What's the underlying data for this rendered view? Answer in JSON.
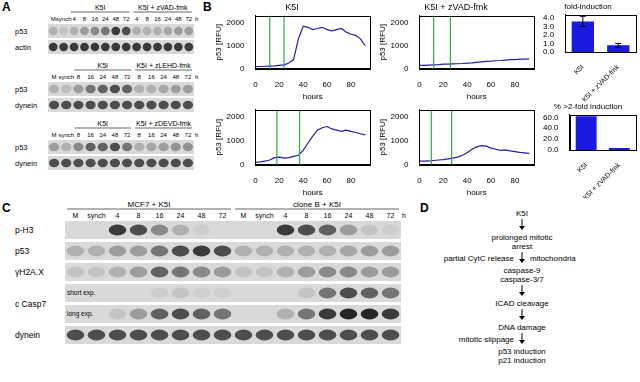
{
  "panel_labels": [
    "A",
    "B",
    "C",
    "D"
  ],
  "chart_data": [
    {
      "type": "line",
      "title": "K5I",
      "xlabel": "hours",
      "ylabel": "p53 [RFU]",
      "x": [
        0,
        4,
        8,
        12,
        16,
        20,
        24,
        28,
        32,
        36,
        40,
        44,
        48,
        52,
        56,
        60,
        64,
        68,
        72,
        76,
        80,
        84,
        88,
        92
      ],
      "values": [
        100,
        100,
        110,
        120,
        130,
        150,
        170,
        250,
        400,
        1300,
        1850,
        1800,
        1700,
        1750,
        1800,
        1700,
        1650,
        1700,
        1750,
        1600,
        1500,
        1450,
        1300,
        1000
      ],
      "color": "#2020a0",
      "xlim": [
        0,
        96
      ],
      "xticks": [
        0,
        20,
        40,
        60,
        80
      ],
      "ylim": [
        0,
        2300
      ],
      "yticks": [
        0,
        1000,
        2000
      ],
      "grid": false,
      "vertical_lines": {
        "x": [
          12,
          24
        ],
        "color": "#33aa44"
      }
    },
    {
      "type": "line",
      "title": "K5I + zVAD-fmk",
      "xlabel": "hours",
      "ylabel": "p53 [RFU]",
      "x": [
        0,
        4,
        8,
        12,
        16,
        20,
        24,
        28,
        32,
        36,
        40,
        44,
        48,
        52,
        56,
        60,
        64,
        68,
        72,
        76,
        80,
        84,
        88,
        92
      ],
      "values": [
        150,
        150,
        160,
        170,
        180,
        200,
        200,
        210,
        220,
        230,
        250,
        260,
        280,
        300,
        320,
        330,
        350,
        360,
        380,
        400,
        400,
        420,
        420,
        430
      ],
      "color": "#2020a0",
      "xlim": [
        0,
        96
      ],
      "xticks": [
        0,
        20,
        40,
        60,
        80
      ],
      "ylim": [
        0,
        2300
      ],
      "yticks": [
        0,
        1000,
        2000
      ],
      "grid": false,
      "vertical_lines": {
        "x": [
          12,
          26
        ],
        "color": "#33aa44"
      }
    },
    {
      "type": "line",
      "xlabel": "hours",
      "ylabel": "p53 [RFU]",
      "x": [
        0,
        4,
        8,
        12,
        16,
        20,
        24,
        28,
        32,
        36,
        40,
        44,
        48,
        52,
        56,
        60,
        64,
        68,
        72,
        76,
        80,
        84,
        88,
        92
      ],
      "values": [
        100,
        120,
        150,
        200,
        300,
        320,
        280,
        300,
        350,
        400,
        600,
        900,
        1200,
        1450,
        1550,
        1600,
        1500,
        1450,
        1400,
        1450,
        1400,
        1350,
        1300,
        1250
      ],
      "color": "#2020a0",
      "xlim": [
        0,
        96
      ],
      "xticks": [
        0,
        20,
        40,
        60,
        80
      ],
      "ylim": [
        0,
        2300
      ],
      "yticks": [
        0,
        1000,
        2000
      ],
      "grid": false,
      "vertical_lines": {
        "x": [
          18,
          37
        ],
        "color": "#33aa44"
      }
    },
    {
      "type": "line",
      "xlabel": "hours",
      "ylabel": "p53 [RFU]",
      "x": [
        0,
        4,
        8,
        12,
        16,
        20,
        24,
        28,
        32,
        36,
        40,
        44,
        48,
        52,
        56,
        60,
        64,
        68,
        72,
        76,
        80,
        84,
        88,
        92
      ],
      "values": [
        150,
        150,
        160,
        180,
        200,
        220,
        250,
        280,
        320,
        400,
        500,
        650,
        750,
        800,
        780,
        700,
        650,
        600,
        620,
        580,
        550,
        520,
        500,
        480
      ],
      "color": "#2020a0",
      "xlim": [
        0,
        96
      ],
      "xticks": [
        0,
        20,
        40,
        60,
        80
      ],
      "ylim": [
        0,
        2300
      ],
      "yticks": [
        0,
        1000,
        2000
      ],
      "grid": false,
      "vertical_lines": {
        "x": [
          10,
          27
        ],
        "color": "#33aa44"
      }
    },
    {
      "type": "bar",
      "title": "fold-induction",
      "categories": [
        "K5I",
        "K5I + zVAD-fmk"
      ],
      "values": [
        3.6,
        0.8
      ],
      "errors": [
        0.6,
        0.2
      ],
      "color": "#1a1ae0",
      "ylim": [
        0,
        4.4
      ],
      "yticks": [
        {
          "value": 0,
          "label": "0.0"
        },
        {
          "value": 1,
          "label": "1.0"
        },
        {
          "value": 2,
          "label": "2.0"
        },
        {
          "value": 3,
          "label": "3.0"
        },
        {
          "value": 4,
          "label": "4.0"
        }
      ],
      "grid": false
    },
    {
      "type": "bar",
      "title": "% >2-fold induction",
      "categories": [
        "K5I",
        "K5I + zVAD-fmk"
      ],
      "values": [
        62,
        3.5
      ],
      "color": "#1a1ae0",
      "ylim": [
        0,
        65
      ],
      "yticks": [
        {
          "value": 0,
          "label": "0.0"
        },
        {
          "value": 20,
          "label": "20.0"
        },
        {
          "value": 40,
          "label": "40.0"
        },
        {
          "value": 60,
          "label": "60.0"
        }
      ],
      "grid": false
    }
  ],
  "blots": {
    "A": [
      {
        "lanes": [
          "M",
          "synch",
          "4",
          "8",
          "16",
          "24",
          "48",
          "72",
          "4",
          "8",
          "16",
          "24",
          "48",
          "72"
        ],
        "unit": "h",
        "groups": [
          {
            "label": "K5I",
            "first": 2,
            "last": 7
          },
          {
            "label": "K5I + zVAD-fmk",
            "first": 8,
            "last": 13
          }
        ],
        "rows": [
          {
            "label": "p53",
            "intensity": [
              0.2,
              0.1,
              0.2,
              0.3,
              0.4,
              0.5,
              0.8,
              0.7,
              0.2,
              0.2,
              0.2,
              0.25,
              0.3,
              0.3
            ]
          },
          {
            "label": "actin",
            "intensity": [
              0.8,
              0.8,
              0.8,
              0.8,
              0.8,
              0.8,
              0.8,
              0.8,
              0.8,
              0.8,
              0.8,
              0.8,
              0.8,
              0.8
            ]
          }
        ]
      },
      {
        "lanes": [
          "M",
          "synch",
          "8",
          "16",
          "24",
          "48",
          "72",
          "8",
          "16",
          "24",
          "48",
          "72"
        ],
        "unit": "h",
        "groups": [
          {
            "label": "K5I",
            "first": 2,
            "last": 6
          },
          {
            "label": "K5I + zLEHD-fmk",
            "first": 7,
            "last": 11
          }
        ],
        "rows": [
          {
            "label": "p53",
            "intensity": [
              0.2,
              0.15,
              0.3,
              0.5,
              0.6,
              0.7,
              0.6,
              0.2,
              0.2,
              0.25,
              0.3,
              0.3
            ]
          },
          {
            "label": "dynein",
            "intensity": [
              0.7,
              0.7,
              0.7,
              0.7,
              0.7,
              0.7,
              0.7,
              0.7,
              0.7,
              0.7,
              0.7,
              0.7
            ]
          }
        ]
      },
      {
        "lanes": [
          "M",
          "synch",
          "8",
          "16",
          "24",
          "48",
          "72",
          "8",
          "16",
          "24",
          "48",
          "72"
        ],
        "unit": "h",
        "groups": [
          {
            "label": "K5I",
            "first": 2,
            "last": 6
          },
          {
            "label": "K5I + zDEVD-fmk",
            "first": 7,
            "last": 11
          }
        ],
        "rows": [
          {
            "label": "p53",
            "intensity": [
              0.3,
              0.2,
              0.4,
              0.6,
              0.6,
              0.7,
              0.5,
              0.2,
              0.25,
              0.3,
              0.35,
              0.35
            ]
          },
          {
            "label": "dynein",
            "intensity": [
              0.7,
              0.7,
              0.7,
              0.7,
              0.7,
              0.7,
              0.7,
              0.7,
              0.7,
              0.7,
              0.7,
              0.7
            ]
          }
        ]
      }
    ],
    "C": {
      "lanes": [
        "M",
        "synch",
        "4",
        "8",
        "16",
        "24",
        "48",
        "72",
        "M",
        "synch",
        "4",
        "8",
        "16",
        "24",
        "48",
        "72"
      ],
      "unit": "h",
      "groups": [
        {
          "label": "MCF7 + K5I",
          "first": 0,
          "last": 7
        },
        {
          "label": "clone B + K5I",
          "first": 8,
          "last": 15
        }
      ],
      "rows": [
        {
          "label": "p-H3",
          "intensity": [
            0,
            0,
            0.8,
            0.7,
            0.4,
            0.2,
            0.05,
            0,
            0,
            0,
            0.8,
            0.7,
            0.6,
            0.3,
            0.1,
            0.05
          ]
        },
        {
          "label": "p53",
          "intensity": [
            0.2,
            0.2,
            0.3,
            0.3,
            0.5,
            0.7,
            0.8,
            0.7,
            0.2,
            0.2,
            0.2,
            0.2,
            0.2,
            0.25,
            0.3,
            0.3
          ]
        },
        {
          "label": "γH2A.X",
          "intensity": [
            0.1,
            0.1,
            0.2,
            0.3,
            0.6,
            0.5,
            0.4,
            0.3,
            0.1,
            0.1,
            0.2,
            0.3,
            0.4,
            0.4,
            0.3,
            0.3
          ]
        },
        {
          "label": "c Casp7",
          "exposures": [
            {
              "note": "short exp.",
              "intensity": [
                0,
                0,
                0,
                0,
                0.05,
                0.1,
                0.05,
                0.05,
                0,
                0,
                0,
                0.1,
                0.5,
                0.7,
                0.6,
                0.5
              ]
            },
            {
              "note": "long exp.",
              "intensity": [
                0,
                0,
                0.1,
                0.3,
                0.6,
                0.7,
                0.6,
                0.5,
                0,
                0,
                0.2,
                0.5,
                0.8,
                0.9,
                0.9,
                0.8
              ]
            }
          ]
        },
        {
          "label": "dynein",
          "intensity": [
            0.7,
            0.7,
            0.7,
            0.7,
            0.7,
            0.7,
            0.7,
            0.7,
            0.7,
            0.7,
            0.7,
            0.7,
            0.7,
            0.7,
            0.7,
            0.7
          ]
        }
      ]
    }
  },
  "diagram": {
    "steps": [
      [
        "K5I"
      ],
      [
        "prolonged mitotic",
        "arrest"
      ],
      [
        "caspase-9",
        "caspase-3/7"
      ],
      [
        "ICAD cleavage"
      ],
      [
        "DNA damage"
      ],
      [
        "p53 induction",
        "p21 induction"
      ]
    ],
    "side_notes": [
      {
        "text": "partial CytC release",
        "after_step": 1,
        "side": "left"
      },
      {
        "text": "mitochondria",
        "after_step": 1,
        "side": "right"
      },
      {
        "text": "mitotic slippage",
        "after_step": 4,
        "side": "left"
      }
    ]
  }
}
